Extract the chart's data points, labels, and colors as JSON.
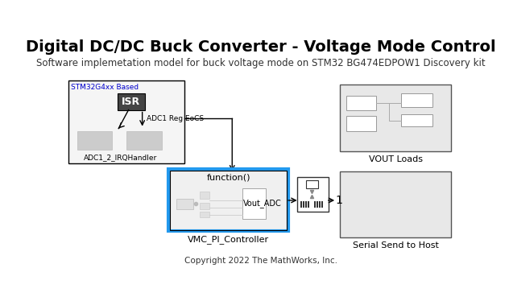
{
  "title": "Digital DC/DC Buck Converter - Voltage Mode Control",
  "subtitle": "Software implemetation model for buck voltage mode on STM32 BG474EDPOW1 Discovery kit",
  "copyright": "Copyright 2022 The MathWorks, Inc.",
  "bg_color": "#ffffff",
  "title_fontsize": 14,
  "subtitle_fontsize": 8.5,
  "stm32_label": "STM32G4xx Based",
  "stm32_label_color": "#0000cc",
  "isr_label": "ISR",
  "adc_reg_label": "ADC1 Reg EoCS",
  "irq_label": "ADC1_2_IRQHandler",
  "func_label": "function()",
  "vout_label": "Vout_ADC",
  "vmc_label": "VMC_PI_Controller",
  "vout_loads_label": "VOUT Loads",
  "serial_label": "Serial Send to Host",
  "one_label": "1",
  "stm32_box_fill": "#f5f5f5",
  "isr_box_fill": "#444444",
  "isr_text_color": "#ffffff",
  "light_gray_fill": "#ebebeb",
  "blue_border": "#2299ee",
  "vout_loads_fill": "#e8e8e8",
  "serial_fill": "#e8e8e8",
  "white": "#ffffff",
  "line_gray": "#aaaaaa"
}
